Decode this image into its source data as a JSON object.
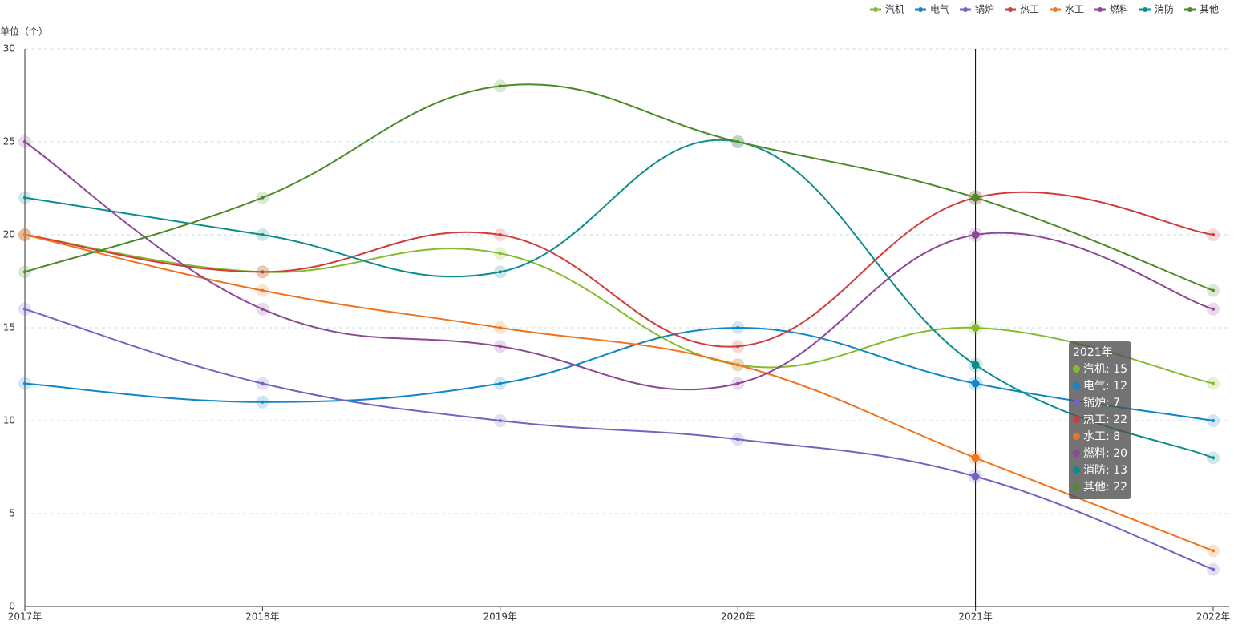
{
  "chart_data": {
    "type": "line",
    "smooth": true,
    "y_axis_label": "单位（个）",
    "categories": [
      "2017年",
      "2018年",
      "2019年",
      "2020年",
      "2021年",
      "2022年"
    ],
    "series": [
      {
        "name": "汽机",
        "color": "#85bb2f",
        "values": [
          20,
          18,
          19,
          13,
          15,
          12
        ]
      },
      {
        "name": "电气",
        "color": "#0e86c8",
        "values": [
          12,
          11,
          12,
          15,
          12,
          10
        ]
      },
      {
        "name": "锅炉",
        "color": "#7262c2",
        "values": [
          16,
          12,
          10,
          9,
          7,
          2
        ]
      },
      {
        "name": "热工",
        "color": "#d23b3b",
        "values": [
          20,
          18,
          20,
          14,
          22,
          20
        ]
      },
      {
        "name": "水工",
        "color": "#f0741e",
        "values": [
          20,
          17,
          15,
          13,
          8,
          3
        ]
      },
      {
        "name": "燃料",
        "color": "#8c4894",
        "values": [
          25,
          16,
          14,
          12,
          20,
          16
        ]
      },
      {
        "name": "消防",
        "color": "#0c8c8c",
        "values": [
          22,
          20,
          18,
          25,
          13,
          8
        ]
      },
      {
        "name": "其他",
        "color": "#4d8a28",
        "values": [
          18,
          22,
          28,
          25,
          22,
          17
        ]
      }
    ],
    "ylim": [
      0,
      30
    ],
    "yticks": [
      0,
      5,
      10,
      15,
      20,
      25,
      30
    ],
    "grid": true,
    "legend": "top-right"
  }
}
